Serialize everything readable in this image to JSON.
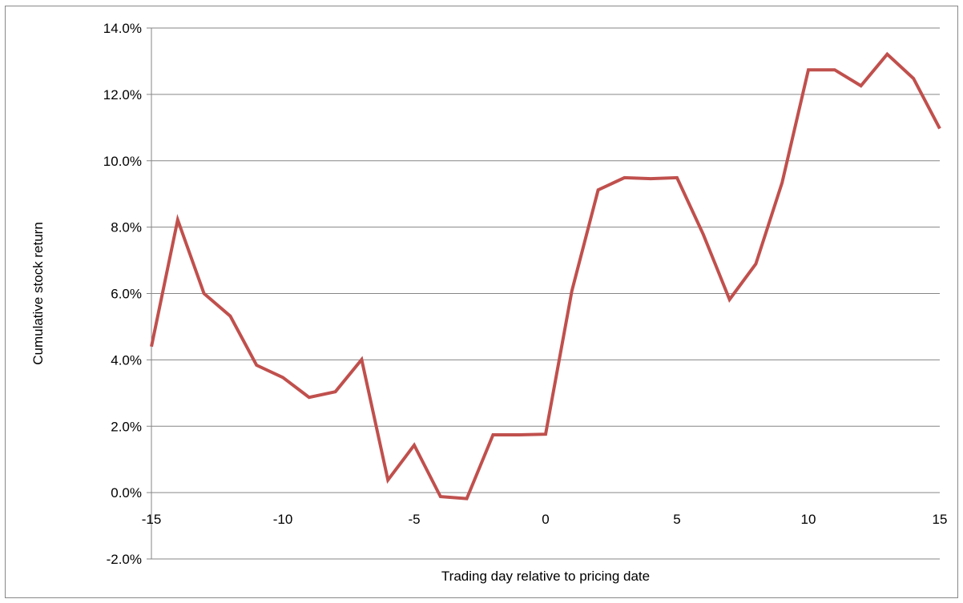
{
  "chart_data": {
    "type": "line",
    "title": "",
    "xlabel": "Trading day relative to pricing date",
    "ylabel": "Cumulative stock return",
    "xlim": [
      -15,
      15
    ],
    "ylim": [
      -0.02,
      0.14
    ],
    "x_ticks": [
      -15,
      -10,
      -5,
      0,
      5,
      10,
      15
    ],
    "x_tick_labels": [
      "-15",
      "-10",
      "-5",
      "0",
      "5",
      "10",
      "15"
    ],
    "y_ticks": [
      -0.02,
      0.0,
      0.02,
      0.04,
      0.06,
      0.08,
      0.1,
      0.12,
      0.14
    ],
    "y_tick_labels": [
      "-2.0%",
      "0.0%",
      "2.0%",
      "4.0%",
      "6.0%",
      "8.0%",
      "10.0%",
      "12.0%",
      "14.0%"
    ],
    "grid": "horizontal",
    "legend": "none",
    "series_color": "#c0504d",
    "grid_color": "#868686",
    "series": [
      {
        "x": [
          -15,
          -14,
          -13,
          -12,
          -11,
          -10,
          -9,
          -8,
          -7,
          -6,
          -5,
          -4,
          -3,
          -2,
          -1,
          0,
          1,
          2,
          3,
          4,
          5,
          6,
          7,
          8,
          9,
          10,
          11,
          12,
          13,
          14,
          15
        ],
        "values": [
          0.044,
          0.0822,
          0.06,
          0.0532,
          0.0384,
          0.0347,
          0.0287,
          0.0304,
          0.0401,
          0.0038,
          0.0143,
          -0.0012,
          -0.0018,
          0.0174,
          0.0174,
          0.0176,
          0.0608,
          0.0912,
          0.0949,
          0.0946,
          0.0949,
          0.0778,
          0.0582,
          0.0689,
          0.0934,
          0.1274,
          0.1274,
          0.1226,
          0.1321,
          0.1248,
          0.1097
        ]
      }
    ]
  }
}
